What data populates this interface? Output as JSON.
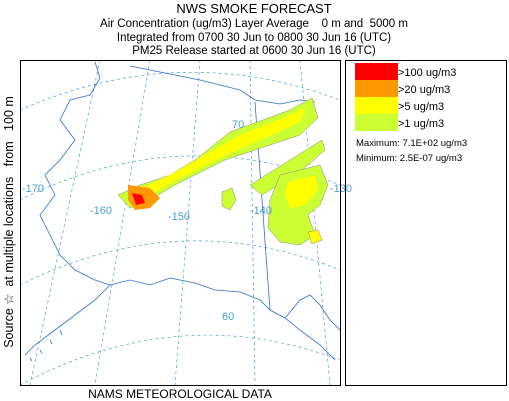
{
  "header": {
    "title": "NWS SMOKE FORECAST",
    "lines": [
      "Air Concentration (ug/m3) Layer Average    0 m and  5000 m",
      "Integrated from 0700 30 Jun to 0800 30 Jun 16 (UTC)",
      "PM25 Release started at 0600 30 Jun 16 (UTC)"
    ]
  },
  "side_label": "Source ☆  at multiple locations   from   100 m",
  "footer": "NAMS METEOROLOGICAL DATA",
  "legend": {
    "items": [
      {
        "label": ">100 ug/m3",
        "color": "#ff0000"
      },
      {
        "label": ">20 ug/m3",
        "color": "#ff9900"
      },
      {
        "label": ">5 ug/m3",
        "color": "#ffff00"
      },
      {
        "label": ">1 ug/m3",
        "color": "#ccff33"
      }
    ],
    "maximum": "Maximum: 7.1E+02 ug/m3",
    "minimum": "Minimum: 2.5E-07 ug/m3"
  },
  "map": {
    "labels": [
      "-170",
      "-160",
      "-150",
      "-140",
      "-130",
      "70",
      "60"
    ]
  }
}
